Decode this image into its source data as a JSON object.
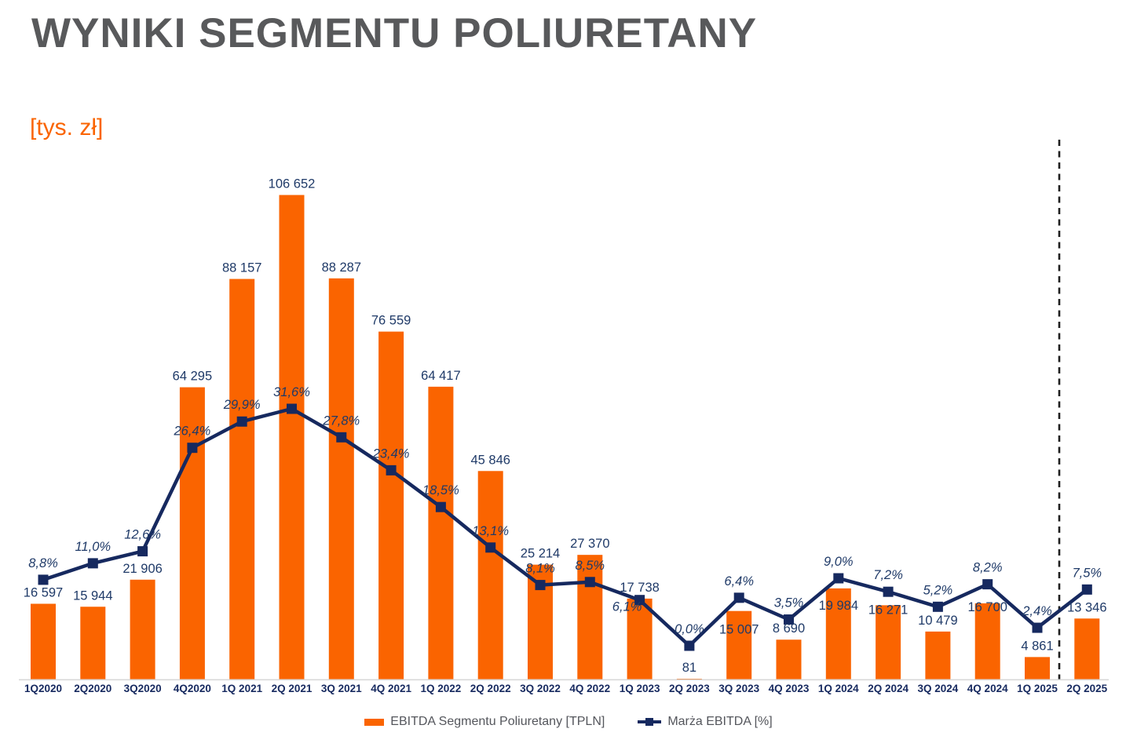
{
  "title": "WYNIKI SEGMENTU POLIURETANY",
  "unit_label": "[tys. zł]",
  "colors": {
    "bar_orange": "#FA6400",
    "line_navy": "#16295F",
    "label_navy": "#1F3A68",
    "axis_gray": "#D9D9D9",
    "title_gray": "#58595B",
    "legend_text_gray": "#54565C",
    "divider_black": "#1F1F1F",
    "background": "#FFFFFF"
  },
  "legend": {
    "items": [
      {
        "label": "EBITDA Segmentu Poliuretany [TPLN]",
        "marker": "orange-square"
      },
      {
        "label": "Marża EBITDA [%]",
        "marker": "navy-line-with-square"
      }
    ]
  },
  "chart_data": {
    "type": "bar",
    "subtype": "combo-bar-line",
    "title": "WYNIKI SEGMENTU POLIURETANY",
    "ylabel": "[tys. zł]",
    "grid": false,
    "legend_position": "bottom",
    "value_axis": {
      "visible": false,
      "implied_range": [
        0,
        120000
      ]
    },
    "percent_axis": {
      "visible": false
    },
    "categories": [
      "1Q2020",
      "2Q2020",
      "3Q2020",
      "4Q2020",
      "1Q 2021",
      "2Q 2021",
      "3Q 2021",
      "4Q 2021",
      "1Q 2022",
      "2Q 2022",
      "3Q 2022",
      "4Q 2022",
      "1Q 2023",
      "2Q 2023",
      "3Q 2023",
      "4Q 2023",
      "1Q 2024",
      "2Q 2024",
      "3Q 2024",
      "4Q 2024",
      "1Q 2025",
      "2Q 2025"
    ],
    "series": [
      {
        "name": "EBITDA Segmentu Poliuretany [TPLN]",
        "type": "bar",
        "values": [
          16597,
          15944,
          21906,
          64295,
          88157,
          106652,
          88287,
          76559,
          64417,
          45846,
          25214,
          27370,
          17738,
          81,
          15007,
          8690,
          19984,
          16271,
          10479,
          16700,
          4861,
          13346
        ],
        "data_labels": [
          "16 597",
          "15 944",
          "21 906",
          "64 295",
          "88 157",
          "106 652",
          "88 287",
          "76 559",
          "64 417",
          "45 846",
          "25 214",
          "27 370",
          "17 738",
          "81",
          "15 007",
          "8 690",
          "19 984",
          "16 271",
          "10 479",
          "16 700",
          "4 861",
          "13 346"
        ]
      },
      {
        "name": "Marża EBITDA [%]",
        "type": "line",
        "unit": "%",
        "values": [
          8.8,
          11.0,
          12.6,
          26.4,
          29.9,
          31.6,
          27.8,
          23.4,
          18.5,
          13.1,
          8.1,
          8.5,
          6.1,
          0.0,
          6.4,
          3.5,
          9.0,
          7.2,
          5.2,
          8.2,
          2.4,
          7.5
        ],
        "data_labels": [
          "8,8%",
          "11,0%",
          "12,6%",
          "26,4%",
          "29,9%",
          "31,6%",
          "27,8%",
          "23,4%",
          "18,5%",
          "13,1%",
          "8,1%",
          "8,5%",
          "6,1%",
          "0,0%",
          "6,4%",
          "3,5%",
          "9,0%",
          "7,2%",
          "5,2%",
          "8,2%",
          "2,4%",
          "7,5%"
        ]
      }
    ],
    "divider": {
      "style": "dashed-vertical",
      "between": [
        "1Q 2025",
        "2Q 2025"
      ]
    }
  }
}
